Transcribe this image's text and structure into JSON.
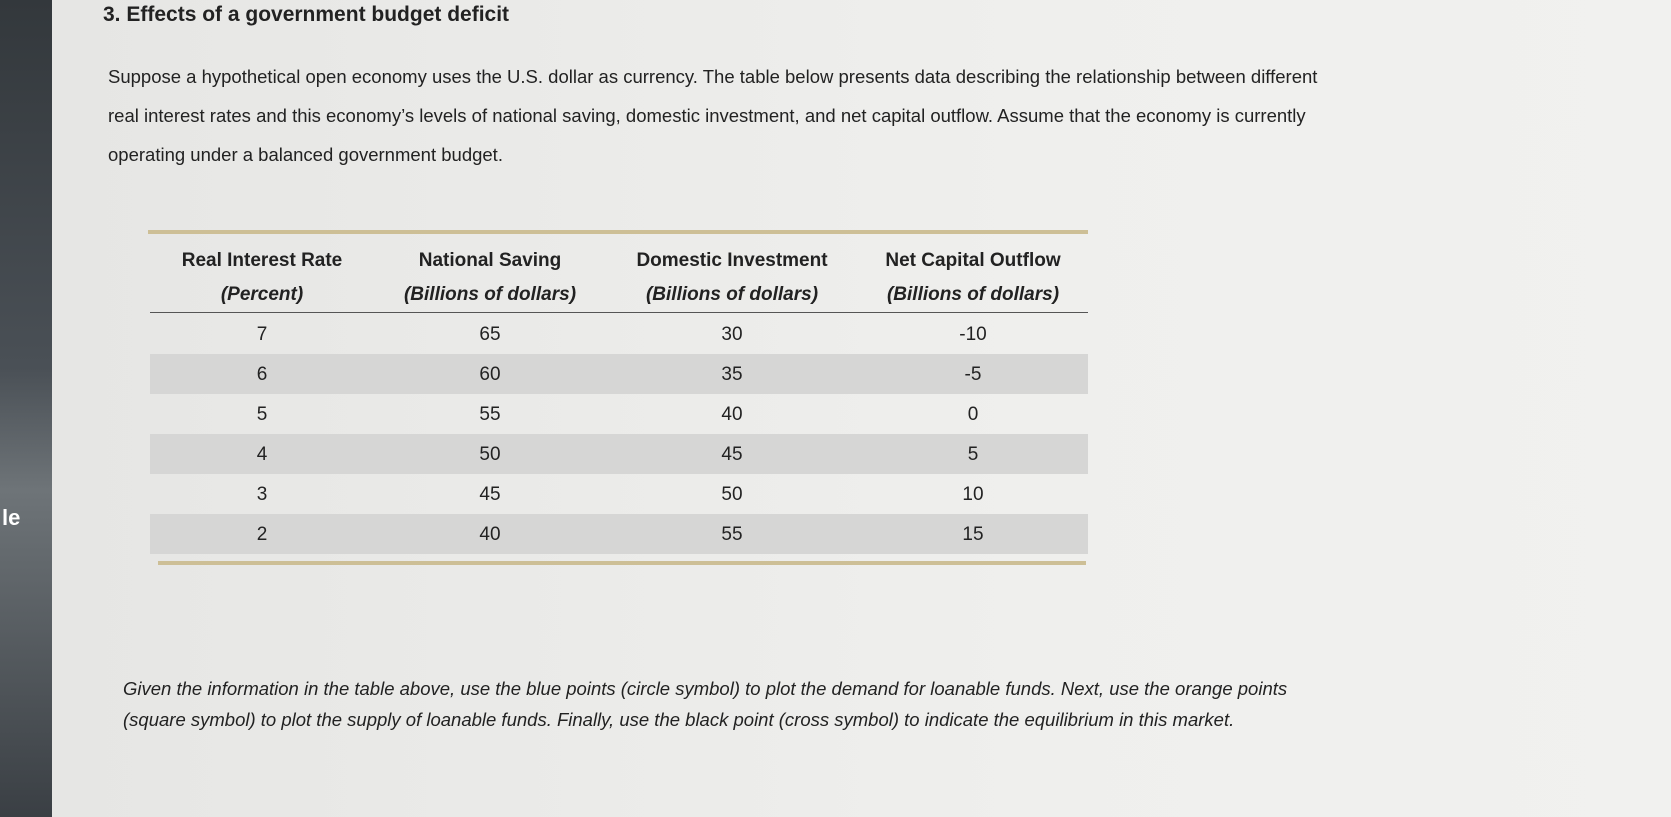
{
  "sidebar": {
    "label": "le"
  },
  "question": {
    "title": "3. Effects of a government budget deficit",
    "intro_lines": [
      "Suppose a hypothetical open economy uses the U.S. dollar as currency. The table below presents data describing the relationship between different",
      "real interest rates and this economy’s levels of national saving, domestic investment, and net capital outflow. Assume that the economy is currently",
      "operating under a balanced government budget."
    ],
    "instruction_lines": [
      "Given the information in the table above, use the blue points (circle symbol) to plot the demand for loanable funds. Next, use the orange points",
      "(square symbol) to plot the supply of loanable funds. Finally, use the black point (cross symbol) to indicate the equilibrium in this market."
    ]
  },
  "table": {
    "columns": [
      {
        "name": "Real Interest Rate",
        "unit": "(Percent)"
      },
      {
        "name": "National Saving",
        "unit": "(Billions of dollars)"
      },
      {
        "name": "Domestic Investment",
        "unit": "(Billions of dollars)"
      },
      {
        "name": "Net Capital Outflow",
        "unit": "(Billions of dollars)"
      }
    ],
    "rows": [
      [
        7,
        65,
        30,
        -10
      ],
      [
        6,
        60,
        35,
        -5
      ],
      [
        5,
        55,
        40,
        0
      ],
      [
        4,
        50,
        45,
        5
      ],
      [
        3,
        45,
        50,
        10
      ],
      [
        2,
        40,
        55,
        15
      ]
    ]
  }
}
